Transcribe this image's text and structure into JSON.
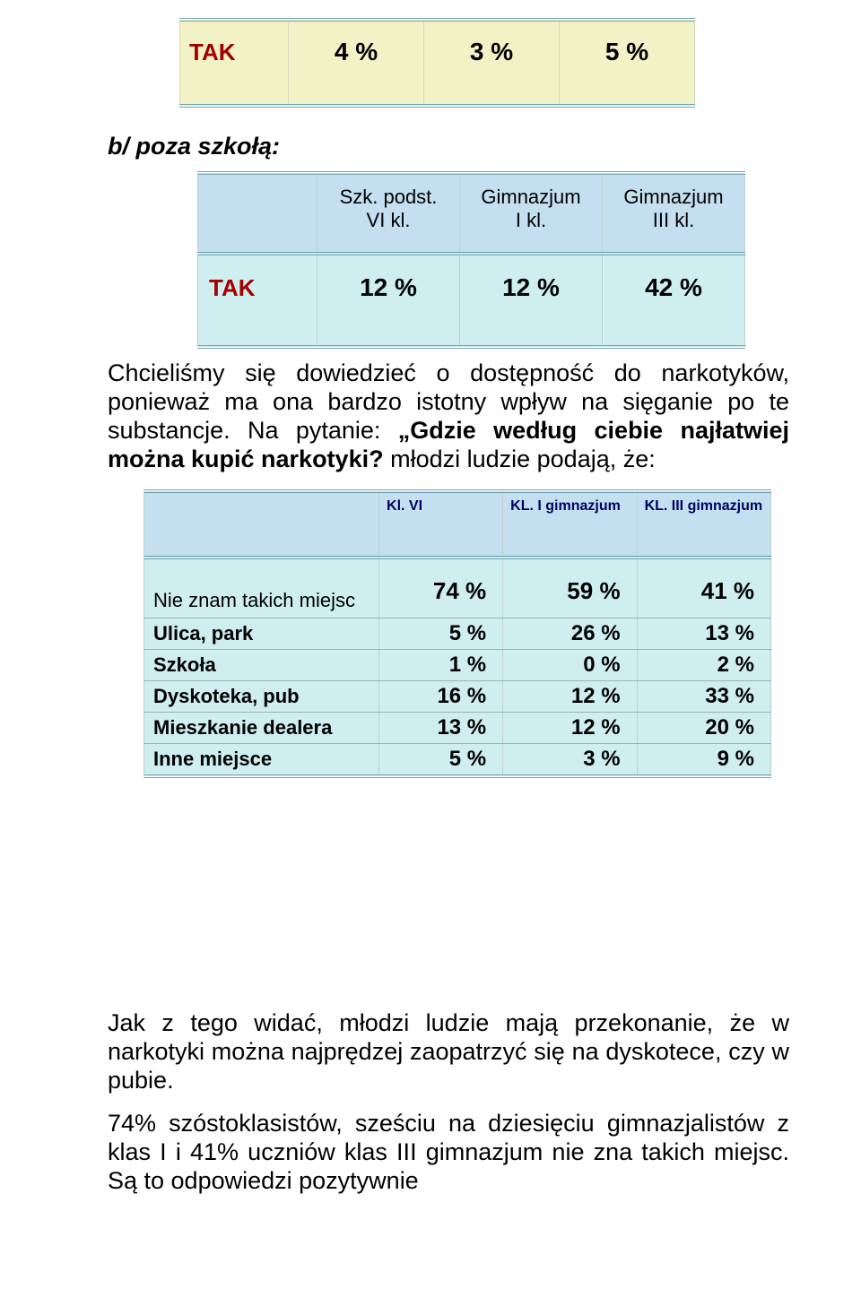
{
  "table1": {
    "label": "TAK",
    "cells": [
      "4 %",
      "3 %",
      "5 %"
    ],
    "bg": "#f2f2c6",
    "label_color": "#a00000"
  },
  "heading1": "b/ poza szkołą:",
  "table2": {
    "headers": [
      "Szk. podst.\nVI kl.",
      "Gimnazjum\nI kl.",
      "Gimnazjum\nIII kl."
    ],
    "label": "TAK",
    "cells": [
      "12 %",
      "12 %",
      "42 %"
    ],
    "header_bg": "#c3dff0",
    "body_bg": "#cfeeef",
    "label_color": "#a00000"
  },
  "para1_pre": "Chcieliśmy się dowiedzieć o dostępność do narkotyków, ponieważ ma ona bardzo istotny wpływ na sięganie po te substancje. Na pytanie: ",
  "para1_q": "„Gdzie według ciebie najłatwiej można kupić narkotyki?",
  "para1_post": " młodzi ludzie podają, że:",
  "table3": {
    "headers": [
      "",
      "Kl. VI",
      "KL. I gimnazjum",
      "KL. III gimnazjum"
    ],
    "header_bg": "#c3dff0",
    "body_bg": "#cfeeef",
    "header_color": "#000060",
    "rows": [
      {
        "label": "Nie znam takich miejsc",
        "vals": [
          "74 %",
          "59 %",
          "41 %"
        ],
        "big": true
      },
      {
        "label": "Ulica, park",
        "vals": [
          "5 %",
          "26 %",
          "13 %"
        ]
      },
      {
        "label": "Szkoła",
        "vals": [
          "1 %",
          "0 %",
          "2 %"
        ]
      },
      {
        "label": "Dyskoteka, pub",
        "vals": [
          "16 %",
          "12 %",
          "33 %"
        ]
      },
      {
        "label": "Mieszkanie dealera",
        "vals": [
          "13 %",
          "12 %",
          "20 %"
        ]
      },
      {
        "label": "Inne miejsce",
        "vals": [
          "5 %",
          "3 %",
          "9 %"
        ]
      }
    ]
  },
  "para2": "Jak z tego widać, młodzi ludzie mają przekonanie, że w narkotyki można najprędzej zaopatrzyć się na dyskotece, czy w pubie.",
  "para3": "74% szóstoklasistów, sześciu na dziesięciu gimnazjalistów z klas I i 41% uczniów klas III gimnazjum nie zna takich miejsc. Są to odpowiedzi pozytywnie"
}
